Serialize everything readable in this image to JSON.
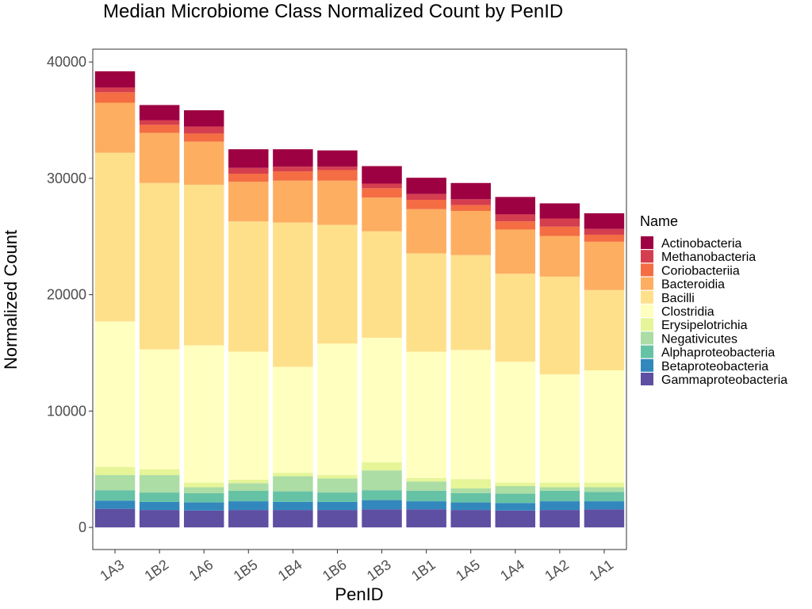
{
  "chart_data": {
    "type": "bar",
    "stacked": true,
    "title": "Median Microbiome Class Normalized Count by PenID",
    "xlabel": "PenID",
    "ylabel": "Normalized Count",
    "ylim": [
      -1900,
      41100
    ],
    "yticks": [
      0,
      10000,
      20000,
      30000,
      40000
    ],
    "grid": false,
    "legend": {
      "title": "Name",
      "position": "right"
    },
    "categories": [
      "1A3",
      "1B2",
      "1A6",
      "1B5",
      "1B4",
      "1B6",
      "1B3",
      "1B1",
      "1A5",
      "1A4",
      "1A2",
      "1A1"
    ],
    "series": [
      {
        "name": "Gammaproteobacteria",
        "color": "#5E4FA2",
        "values": [
          1600,
          1500,
          1450,
          1500,
          1500,
          1500,
          1550,
          1550,
          1500,
          1450,
          1500,
          1550
        ]
      },
      {
        "name": "Betaproteobacteria",
        "color": "#3288BD",
        "values": [
          700,
          700,
          700,
          750,
          700,
          700,
          800,
          700,
          650,
          650,
          750,
          700
        ]
      },
      {
        "name": "Alphaproteobacteria",
        "color": "#66C2A5",
        "values": [
          900,
          800,
          800,
          900,
          900,
          800,
          850,
          900,
          800,
          800,
          900,
          800
        ]
      },
      {
        "name": "Negativicutes",
        "color": "#ABDDA4",
        "values": [
          1300,
          1500,
          500,
          650,
          1300,
          1200,
          1700,
          800,
          400,
          650,
          300,
          400
        ]
      },
      {
        "name": "Erysipelotrichia",
        "color": "#E6F598",
        "values": [
          700,
          500,
          400,
          300,
          300,
          300,
          700,
          300,
          800,
          300,
          400,
          400
        ]
      },
      {
        "name": "Clostridia",
        "color": "#FFFFBF",
        "values": [
          12500,
          10300,
          11800,
          11000,
          9100,
          11300,
          10700,
          10850,
          11100,
          10400,
          9300,
          9650
        ]
      },
      {
        "name": "Bacilli",
        "color": "#FEE08B",
        "values": [
          14500,
          14300,
          13800,
          11200,
          12400,
          10200,
          9150,
          8450,
          8150,
          7550,
          8400,
          6900
        ]
      },
      {
        "name": "Bacteroidia",
        "color": "#FDAE61",
        "values": [
          4300,
          4300,
          3700,
          3400,
          3600,
          3800,
          2900,
          3800,
          3800,
          3800,
          3500,
          4150
        ]
      },
      {
        "name": "Coriobacteriia",
        "color": "#F46D43",
        "values": [
          900,
          700,
          700,
          700,
          800,
          900,
          800,
          800,
          500,
          700,
          800,
          600
        ]
      },
      {
        "name": "Methanobacteria",
        "color": "#D53E4F",
        "values": [
          400,
          400,
          600,
          500,
          400,
          300,
          400,
          500,
          500,
          600,
          700,
          500
        ]
      },
      {
        "name": "Actinobacteria",
        "color": "#9E0142",
        "values": [
          1400,
          1300,
          1400,
          1600,
          1500,
          1400,
          1500,
          1400,
          1400,
          1500,
          1300,
          1350
        ]
      }
    ]
  }
}
